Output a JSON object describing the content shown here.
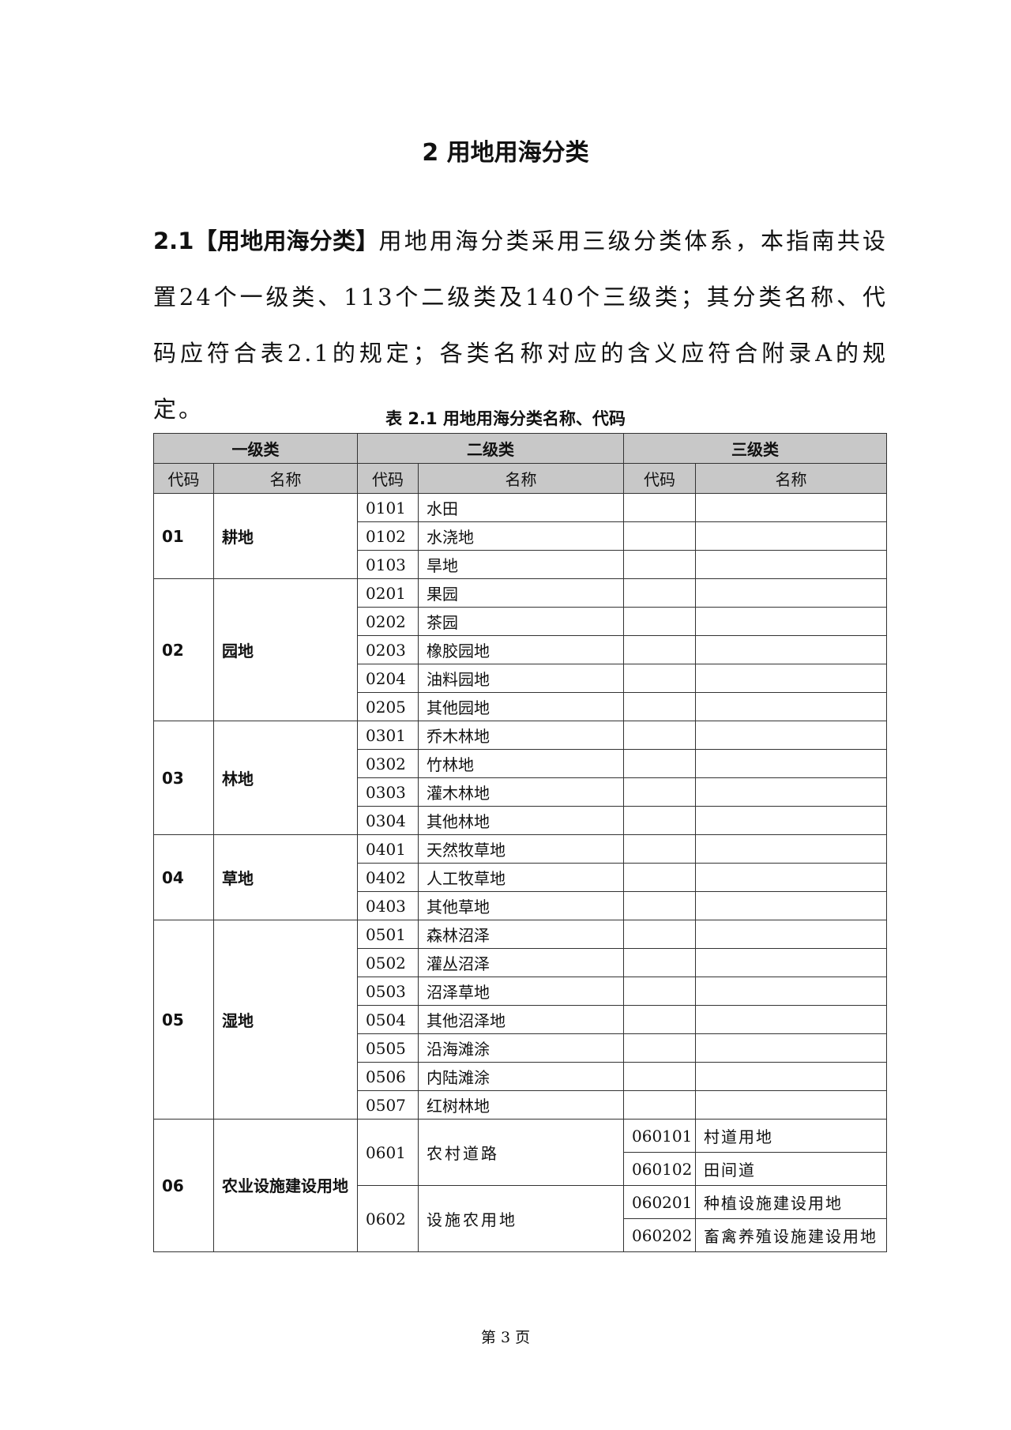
{
  "title": "2 用地用海分类",
  "para": {
    "lead": "2.1【用地用海分类】",
    "text": "用地用海分类采用三级分类体系，本指南共设置24个一级类、113个二级类及140个三级类；其分类名称、代码应符合表2.1的规定；各类名称对应的含义应符合附录A的规定。"
  },
  "caption": "表 2.1 用地用海分类名称、代码",
  "header": {
    "level1": "一级类",
    "level2": "二级类",
    "level3": "三级类",
    "code": "代码",
    "name": "名称"
  },
  "groups": [
    {
      "code": "01",
      "name": "耕地",
      "items": [
        [
          "0101",
          "水田"
        ],
        [
          "0102",
          "水浇地"
        ],
        [
          "0103",
          "旱地"
        ]
      ]
    },
    {
      "code": "02",
      "name": "园地",
      "items": [
        [
          "0201",
          "果园"
        ],
        [
          "0202",
          "茶园"
        ],
        [
          "0203",
          "橡胶园地"
        ],
        [
          "0204",
          "油料园地"
        ],
        [
          "0205",
          "其他园地"
        ]
      ]
    },
    {
      "code": "03",
      "name": "林地",
      "items": [
        [
          "0301",
          "乔木林地"
        ],
        [
          "0302",
          "竹林地"
        ],
        [
          "0303",
          "灌木林地"
        ],
        [
          "0304",
          "其他林地"
        ]
      ]
    },
    {
      "code": "04",
      "name": "草地",
      "items": [
        [
          "0401",
          "天然牧草地"
        ],
        [
          "0402",
          "人工牧草地"
        ],
        [
          "0403",
          "其他草地"
        ]
      ]
    },
    {
      "code": "05",
      "name": "湿地",
      "items": [
        [
          "0501",
          "森林沼泽"
        ],
        [
          "0502",
          "灌丛沼泽"
        ],
        [
          "0503",
          "沼泽草地"
        ],
        [
          "0504",
          "其他沼泽地"
        ],
        [
          "0505",
          "沿海滩涂"
        ],
        [
          "0506",
          "内陆滩涂"
        ],
        [
          "0507",
          "红树林地"
        ]
      ]
    }
  ],
  "group06": {
    "code": "06",
    "name": "农业设施建设用地",
    "items": [
      {
        "code": "0601",
        "name": "农村道路",
        "sub": [
          [
            "060101",
            "村道用地"
          ],
          [
            "060102",
            "田间道"
          ]
        ]
      },
      {
        "code": "0602",
        "name": "设施农用地",
        "sub": [
          [
            "060201",
            "种植设施建设用地"
          ],
          [
            "060202",
            "畜禽养殖设施建设用地"
          ]
        ]
      }
    ]
  },
  "page": "第 3 页"
}
